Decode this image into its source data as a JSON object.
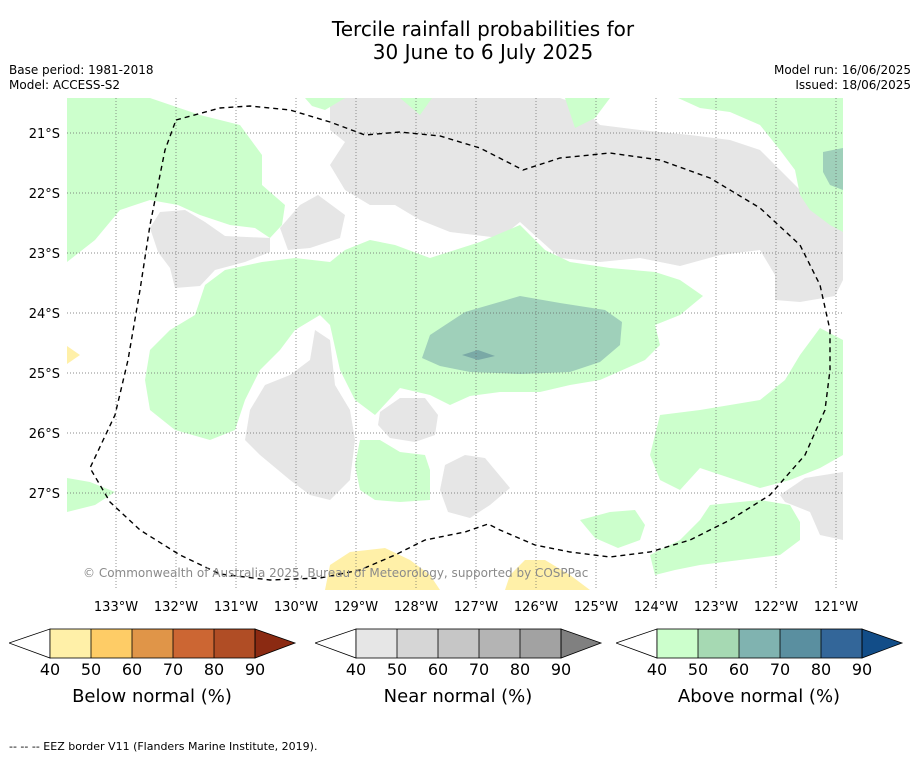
{
  "title_line1": "Tercile rainfall probabilities for",
  "title_line2": "30 June to 6 July 2025",
  "meta_left": {
    "base_period": "Base period: 1981-2018",
    "model": "Model: ACCESS-S2"
  },
  "meta_right": {
    "model_run": "Model run: 16/06/2025",
    "issued": "Issued: 18/06/2025"
  },
  "lat_labels": [
    "21°S",
    "22°S",
    "23°S",
    "24°S",
    "25°S",
    "26°S",
    "27°S"
  ],
  "lon_labels": [
    "133°W",
    "132°W",
    "131°W",
    "130°W",
    "129°W",
    "128°W",
    "127°W",
    "126°W",
    "125°W",
    "124°W",
    "123°W",
    "122°W",
    "121°W"
  ],
  "copyright": "© Commonwealth of Australia 2025, Bureau of Meteorology, supported by COSPPac",
  "colorbars": [
    {
      "label": "Below normal (%)",
      "ticks": [
        "40",
        "50",
        "60",
        "70",
        "80",
        "90"
      ],
      "colors": [
        "#fff0a8",
        "#fecc66",
        "#e09548",
        "#cc6633",
        "#b04d25",
        "#8b2a12"
      ]
    },
    {
      "label": "Near normal (%)",
      "ticks": [
        "40",
        "50",
        "60",
        "70",
        "80",
        "90"
      ],
      "colors": [
        "#e6e6e6",
        "#d6d6d6",
        "#c6c6c6",
        "#b4b4b4",
        "#a2a2a2",
        "#808080"
      ]
    },
    {
      "label": "Above normal (%)",
      "ticks": [
        "40",
        "50",
        "60",
        "70",
        "80",
        "90"
      ],
      "colors": [
        "#ccffcc",
        "#a6d9b3",
        "#80b3b0",
        "#5a8fa0",
        "#336699",
        "#124d88"
      ]
    }
  ],
  "footer": "--  --  -- EEZ border V11 (Flanders Marine Institute, 2019).",
  "colors": {
    "below_40": "#fff0a8",
    "near_40": "#e6e6e6",
    "above_40": "#ccffcc",
    "above_50": "#9fd0ba",
    "above_60": "#7aa9a6"
  }
}
